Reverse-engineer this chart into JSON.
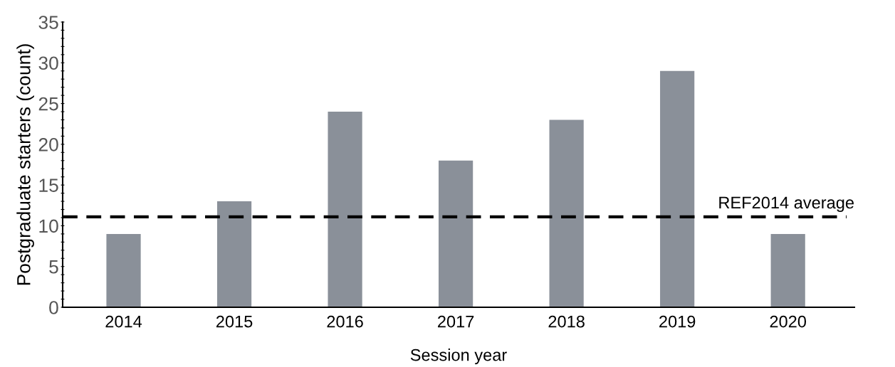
{
  "chart_data": {
    "type": "bar",
    "xlabel": "Session year",
    "ylabel": "Postgraduate starters (count)",
    "categories": [
      "2014",
      "2015",
      "2016",
      "2017",
      "2018",
      "2019",
      "2020"
    ],
    "values": [
      9,
      13,
      24,
      18,
      23,
      29,
      9
    ],
    "color": "#8a9099",
    "ylim": [
      0,
      35
    ],
    "yticks": [
      0,
      {
        "value": 1,
        "label": null
      },
      {
        "value": 2,
        "label": null
      },
      {
        "value": 3,
        "label": null
      },
      {
        "value": 4,
        "label": null
      },
      5,
      {
        "value": 6,
        "label": null
      },
      {
        "value": 7,
        "label": null
      },
      {
        "value": 8,
        "label": null
      },
      {
        "value": 9,
        "label": null
      },
      10,
      {
        "value": 11,
        "label": null
      },
      {
        "value": 12,
        "label": null
      },
      {
        "value": 13,
        "label": null
      },
      {
        "value": 14,
        "label": null
      },
      15,
      {
        "value": 16,
        "label": null
      },
      {
        "value": 17,
        "label": null
      },
      {
        "value": 18,
        "label": null
      },
      {
        "value": 19,
        "label": null
      },
      20,
      {
        "value": 21,
        "label": null
      },
      {
        "value": 22,
        "label": null
      },
      {
        "value": 23,
        "label": null
      },
      {
        "value": 24,
        "label": null
      },
      25,
      {
        "value": 26,
        "label": null
      },
      {
        "value": 27,
        "label": null
      },
      {
        "value": 28,
        "label": null
      },
      {
        "value": 29,
        "label": null
      },
      30,
      {
        "value": 31,
        "label": null
      },
      {
        "value": 32,
        "label": null
      },
      {
        "value": 33,
        "label": null
      },
      {
        "value": 34,
        "label": null
      },
      35
    ],
    "ref_lines": [
      {
        "axis": "y",
        "value": 11.1,
        "label": "REF2014 average",
        "color": "#000000",
        "line_style": "dashed"
      }
    ],
    "grid": false,
    "legend": false
  }
}
